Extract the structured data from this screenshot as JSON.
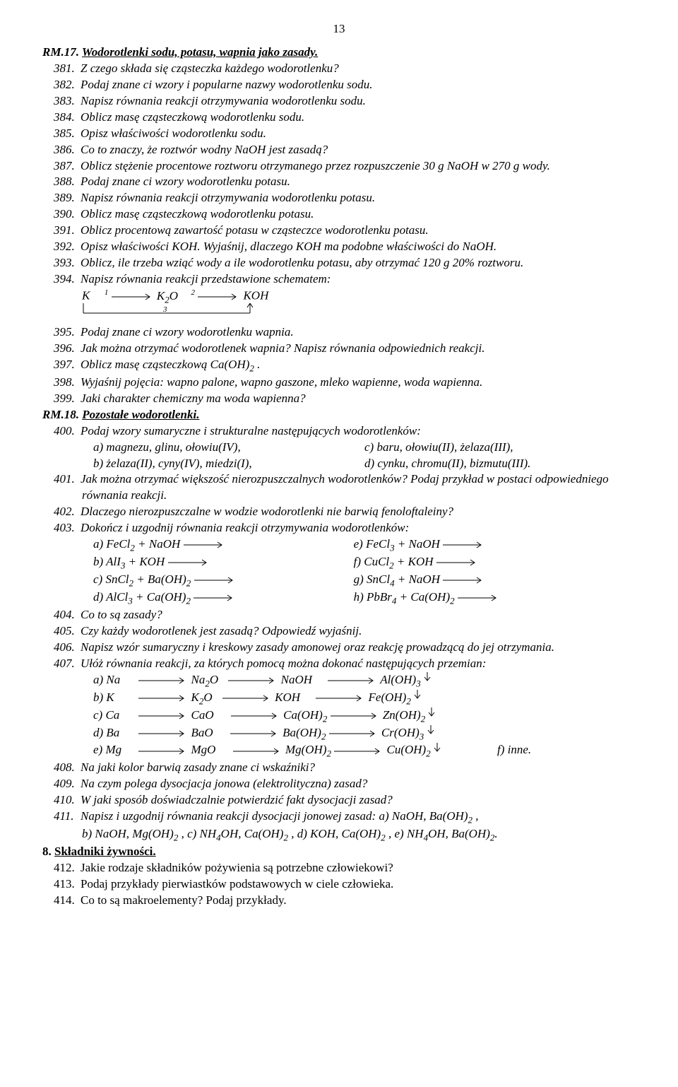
{
  "page_number": "13",
  "rm17": {
    "heading_plain": "RM.17.  ",
    "heading_ul": "Wodorotlenki sodu, potasu, wapnia jako zasady.",
    "items": [
      {
        "n": "381.",
        "t": "Z czego składa się cząsteczka każdego wodorotlenku?"
      },
      {
        "n": "382.",
        "t": "Podaj znane ci wzory i popularne nazwy wodorotlenku sodu."
      },
      {
        "n": "383.",
        "t": "Napisz równania reakcji otrzymywania wodorotlenku sodu."
      },
      {
        "n": "384.",
        "t": "Oblicz masę cząsteczkową wodorotlenku sodu."
      },
      {
        "n": "385.",
        "t": "Opisz właściwości wodorotlenku sodu."
      },
      {
        "n": "386.",
        "t": "Co to znaczy, że roztwór wodny NaOH jest zasadą?"
      },
      {
        "n": "387.",
        "t": "Oblicz stężenie procentowe roztworu otrzymanego przez rozpuszczenie 30 g NaOH w 270 g wody."
      },
      {
        "n": "388.",
        "t": "Podaj znane ci wzory wodorotlenku potasu."
      },
      {
        "n": "389.",
        "t": "Napisz równania reakcji otrzymywania wodorotlenku potasu."
      },
      {
        "n": "390.",
        "t": "Oblicz masę cząsteczkową wodorotlenku potasu."
      },
      {
        "n": "391.",
        "t": "Oblicz procentową zawartość potasu w cząsteczce wodorotlenku potasu."
      },
      {
        "n": "392.",
        "t": "Opisz właściwości KOH. Wyjaśnij, dlaczego KOH ma podobne właściwości do NaOH."
      },
      {
        "n": "393.",
        "t": "Oblicz, ile trzeba wziąć wody a ile wodorotlenku potasu, aby otrzymać 120 g 20% roztworu."
      },
      {
        "n": "394.",
        "t": "Napisz równania reakcji przedstawione schematem:"
      }
    ],
    "scheme": {
      "s1": "K",
      "s2": "K",
      "s2sub": "2",
      "s2b": "O",
      "s3": "KOH",
      "sup1": "1",
      "sup2": "2",
      "sup3": "3"
    },
    "items2": [
      {
        "n": "395.",
        "t": "Podaj znane ci wzory wodorotlenku wapnia."
      },
      {
        "n": "396.",
        "t": "Jak można otrzymać wodorotlenek wapnia? Napisz równania odpowiednich reakcji."
      },
      {
        "n": "397.",
        "t": "Oblicz masę cząsteczkową Ca(OH)",
        "sub": "2",
        "tail": " ."
      },
      {
        "n": "398.",
        "t": "Wyjaśnij pojęcia: wapno palone, wapno gaszone, mleko wapienne, woda wapienna."
      },
      {
        "n": "399.",
        "t": "Jaki charakter chemiczny ma woda wapienna?"
      }
    ]
  },
  "rm18": {
    "heading_plain": "RM.18.  ",
    "heading_ul": "Pozostałe wodorotlenki.",
    "i400": {
      "n": "400.",
      "t": "Podaj wzory sumaryczne i strukturalne następujących wodorotlenków:",
      "rows": [
        {
          "a": "a) magnezu, glinu, ołowiu(IV),",
          "b": "c) baru, ołowiu(II), żelaza(III),"
        },
        {
          "a": "b) żelaza(II), cyny(IV), miedzi(I),",
          "b": "d) cynku, chromu(II), bizmutu(III)."
        }
      ]
    },
    "i401": {
      "n": "401.",
      "t": "Jak można otrzymać większość nierozpuszczalnych wodorotlenków? Podaj przykład w postaci odpowiedniego równania reakcji."
    },
    "i402": {
      "n": "402.",
      "t": "Dlaczego nierozpuszczalne w wodzie wodorotlenki nie barwią fenoloftaleiny?"
    },
    "i403": {
      "n": "403.",
      "t": "Dokończ i uzgodnij równania reakcji otrzymywania wodorotlenków:",
      "rows": [
        {
          "a": "a) FeCl",
          "asub": "2",
          "a2": " + NaOH",
          "b": "e) FeCl",
          "bsub": "3",
          "b2": " + NaOH"
        },
        {
          "a": "b) AlI",
          "asub": "3",
          "a2": " + KOH",
          "b": "f) CuCl",
          "bsub": "2",
          "b2": " + KOH"
        },
        {
          "a": "c) SnCl",
          "asub": "2",
          "a2": " + Ba(OH)",
          "asub2": "2",
          "b": "g) SnCl",
          "bsub": "4",
          "b2": " + NaOH"
        },
        {
          "a": "d) AlCl",
          "asub": "3",
          "a2": " + Ca(OH)",
          "asub2": "2",
          "b": "h) PbBr",
          "bsub": "4",
          "b2": " + Ca(OH)",
          "bsub2": "2"
        }
      ]
    },
    "i404": {
      "n": "404.",
      "t": "Co to są zasady?"
    },
    "i405": {
      "n": "405.",
      "t": "Czy każdy wodorotlenek jest zasadą? Odpowiedź wyjaśnij."
    },
    "i406": {
      "n": "406.",
      "t": "Napisz wzór sumaryczny i kreskowy zasady amonowej oraz reakcję prowadzącą do jej otrzymania."
    },
    "i407": {
      "n": "407.",
      "t": "Ułóż równania reakcji, za których pomocą można dokonać następujących przemian:",
      "rows": [
        {
          "c": [
            "a) Na",
            "Na",
            "2",
            "O",
            "NaOH",
            "Al(OH)",
            "3"
          ]
        },
        {
          "c": [
            "b) K",
            "K",
            "2",
            "O",
            "KOH",
            "Fe(OH)",
            "2"
          ]
        },
        {
          "c": [
            "c) Ca",
            "CaO",
            "",
            "",
            "Ca(OH)",
            "2",
            "Zn(OH)",
            "2"
          ]
        },
        {
          "c": [
            "d) Ba",
            "BaO",
            "",
            "",
            "Ba(OH)",
            "2",
            "Cr(OH)",
            "3"
          ]
        },
        {
          "c": [
            "e) Mg",
            "MgO",
            "",
            "",
            "Mg(OH)",
            "2",
            "Cu(OH)",
            "2"
          ],
          "tail": "f) inne."
        }
      ]
    },
    "i408": {
      "n": "408.",
      "t": "Na jaki kolor barwią zasady znane ci wskaźniki?"
    },
    "i409": {
      "n": "409.",
      "t": "Na czym polega dysocjacja jonowa (elektrolityczna) zasad?"
    },
    "i410": {
      "n": "410.",
      "t": "W jaki sposób doświadczalnie potwierdzić fakt dysocjacji zasad?"
    },
    "i411": {
      "n": "411.",
      "t": "Napisz i uzgodnij równania reakcji dysocjacji jonowej zasad:   a) NaOH, Ba(OH)",
      "sub": "2",
      "t2": " ,",
      "line2": "b) NaOH, Mg(OH)",
      "l2s": "2",
      "l2b": " ,   c) NH",
      "l2s2": "4",
      "l2c": "OH, Ca(OH)",
      "l2s3": "2",
      "l2d": " ,   d) KOH, Ca(OH)",
      "l2s4": "2",
      "l2e": " ,  e) NH",
      "l2s5": "4",
      "l2f": "OH, Ba(OH)",
      "l2s6": "2",
      "l2g": "."
    }
  },
  "sec8": {
    "head": "8.        ",
    "head_u": "Składniki żywności.",
    "items": [
      {
        "n": "412.",
        "t": "Jakie rodzaje składników pożywienia są potrzebne człowiekowi?"
      },
      {
        "n": "413.",
        "t": "Podaj przykłady pierwiastków podstawowych w ciele człowieka."
      },
      {
        "n": "414.",
        "t": "Co to są makroelementy? Podaj przykłady."
      }
    ]
  },
  "arrow_len": 70,
  "arrow_len_short": 60,
  "down_arrow_h": 14
}
